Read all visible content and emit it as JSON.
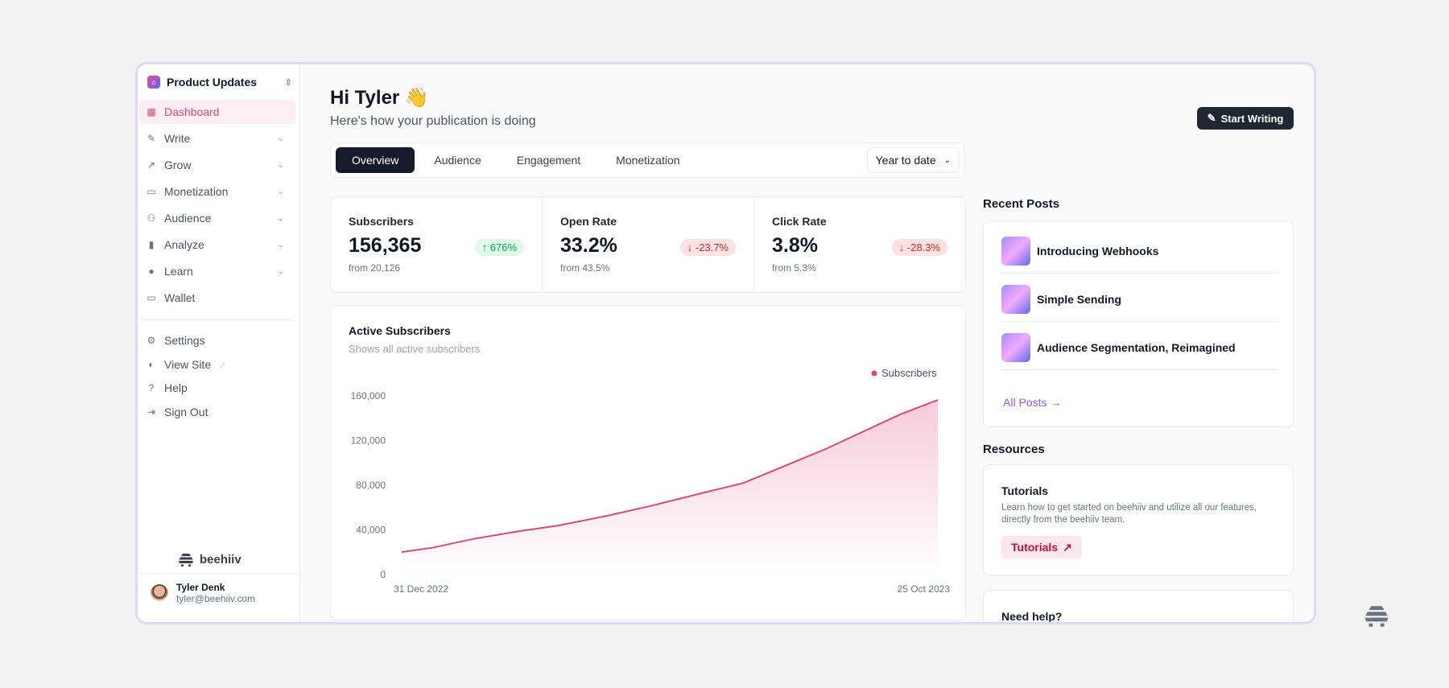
{
  "sidebar": {
    "publication": "Product Updates",
    "items": [
      {
        "label": "Dashboard",
        "icon": "grid-icon",
        "active": true
      },
      {
        "label": "Write",
        "icon": "pencil-icon",
        "expandable": true
      },
      {
        "label": "Grow",
        "icon": "trending-up-icon",
        "expandable": true
      },
      {
        "label": "Monetization",
        "icon": "cash-icon",
        "expandable": true
      },
      {
        "label": "Audience",
        "icon": "users-icon",
        "expandable": true
      },
      {
        "label": "Analyze",
        "icon": "bar-chart-icon",
        "expandable": true
      },
      {
        "label": "Learn",
        "icon": "lightbulb-icon",
        "expandable": true
      },
      {
        "label": "Wallet",
        "icon": "wallet-icon"
      }
    ],
    "footer_items": [
      {
        "label": "Settings",
        "icon": "gear-icon"
      },
      {
        "label": "View Site",
        "icon": "globe-icon"
      },
      {
        "label": "Help",
        "icon": "help-icon"
      },
      {
        "label": "Sign Out",
        "icon": "sign-out-icon"
      }
    ],
    "brand": "beehiiv",
    "user": {
      "name": "Tyler Denk",
      "email": "tyler@beehiiv.com"
    }
  },
  "header": {
    "greeting": "Hi Tyler 👋",
    "subtitle": "Here's how your publication is doing",
    "start_writing": "Start Writing"
  },
  "tabs": [
    {
      "label": "Overview",
      "active": true
    },
    {
      "label": "Audience"
    },
    {
      "label": "Engagement"
    },
    {
      "label": "Monetization"
    }
  ],
  "range": "Year to date",
  "stats": [
    {
      "label": "Subscribers",
      "value": "156,365",
      "from": "from 20,126",
      "change": "676%",
      "direction": "up"
    },
    {
      "label": "Open Rate",
      "value": "33.2%",
      "from": "from 43.5%",
      "change": "-23.7%",
      "direction": "down"
    },
    {
      "label": "Click Rate",
      "value": "3.8%",
      "from": "from 5.3%",
      "change": "-28.3%",
      "direction": "down"
    }
  ],
  "chart_card": {
    "title": "Active Subscribers",
    "subtitle": "Shows all active subscribers"
  },
  "chart_data": {
    "type": "area",
    "series": [
      {
        "name": "Subscribers",
        "color": "#e0457b",
        "x": [
          "2022-12-31",
          "2023-01-17",
          "2023-02-10",
          "2023-03-07",
          "2023-03-28",
          "2023-04-23",
          "2023-05-18",
          "2023-06-18",
          "2023-07-09",
          "2023-08-03",
          "2023-08-24",
          "2023-10-04",
          "2023-10-25"
        ],
        "values": [
          20126,
          24000,
          32300,
          39000,
          43900,
          52200,
          61300,
          73800,
          82000,
          98700,
          112700,
          143400,
          156365
        ]
      }
    ],
    "x_tick_labels": [
      "31 Dec 2022",
      "25 Oct 2023"
    ],
    "y_ticks": [
      0,
      40000,
      80000,
      120000,
      160000
    ],
    "y_tick_labels": [
      "0",
      "40,000",
      "80,000",
      "120,000",
      "160,000"
    ],
    "ylim": [
      0,
      160000
    ],
    "legend": "top-right",
    "grid": false
  },
  "recent_posts": {
    "title": "Recent Posts",
    "posts": [
      "Introducing Webhooks",
      "Simple Sending",
      "Audience Segmentation, Reimagined"
    ],
    "all_posts": "All Posts →"
  },
  "resources": {
    "title": "Resources",
    "tutorials_title": "Tutorials",
    "tutorials_desc": "Learn how to get started on beehiiv and utilize all our features, directly from the beehiiv team.",
    "tutorials_button": "Tutorials"
  },
  "help": {
    "title": "Need help?"
  }
}
